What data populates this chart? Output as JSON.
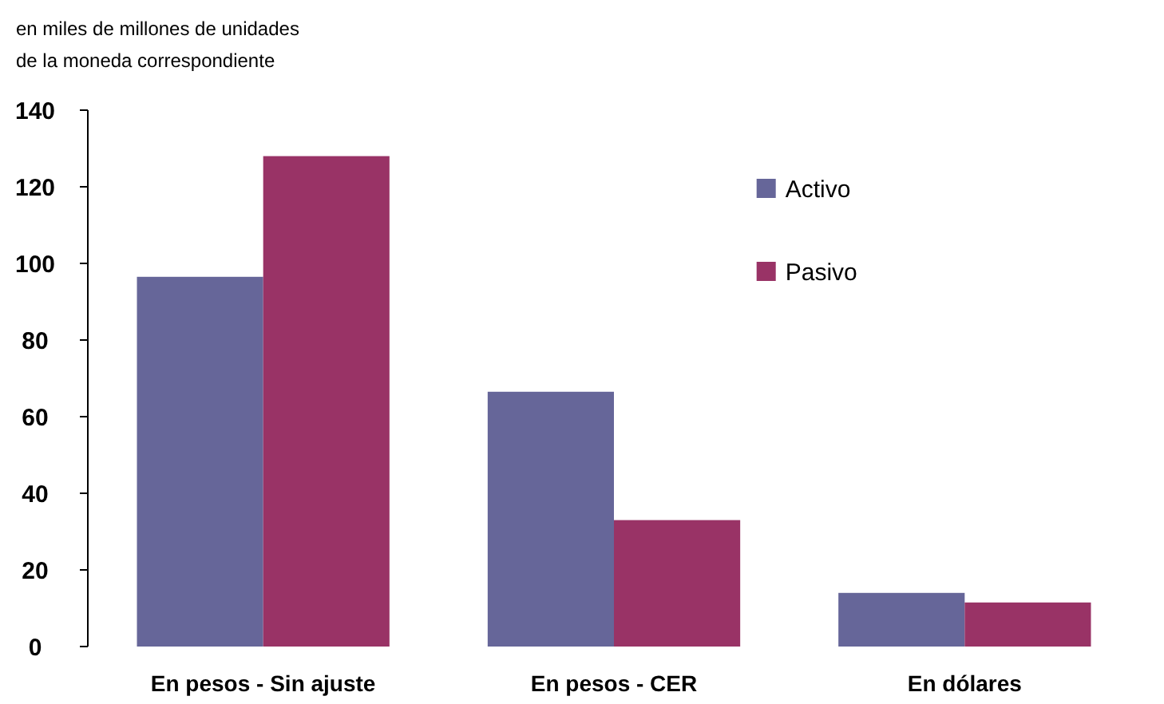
{
  "chart_data": {
    "type": "bar",
    "ylabel": "en miles de millones de unidades\nde la moneda correspondiente",
    "categories": [
      "En pesos - Sin ajuste",
      "En pesos - CER",
      "En dólares"
    ],
    "series": [
      {
        "name": "Activo",
        "color": "#666699",
        "values": [
          96.5,
          66.5,
          14
        ]
      },
      {
        "name": "Pasivo",
        "color": "#993366",
        "values": [
          128,
          33,
          11.5
        ]
      }
    ],
    "ylim": [
      0,
      140
    ],
    "yticks": [
      0,
      20,
      40,
      60,
      80,
      100,
      120,
      140
    ],
    "grid": false,
    "legend": "top right"
  }
}
